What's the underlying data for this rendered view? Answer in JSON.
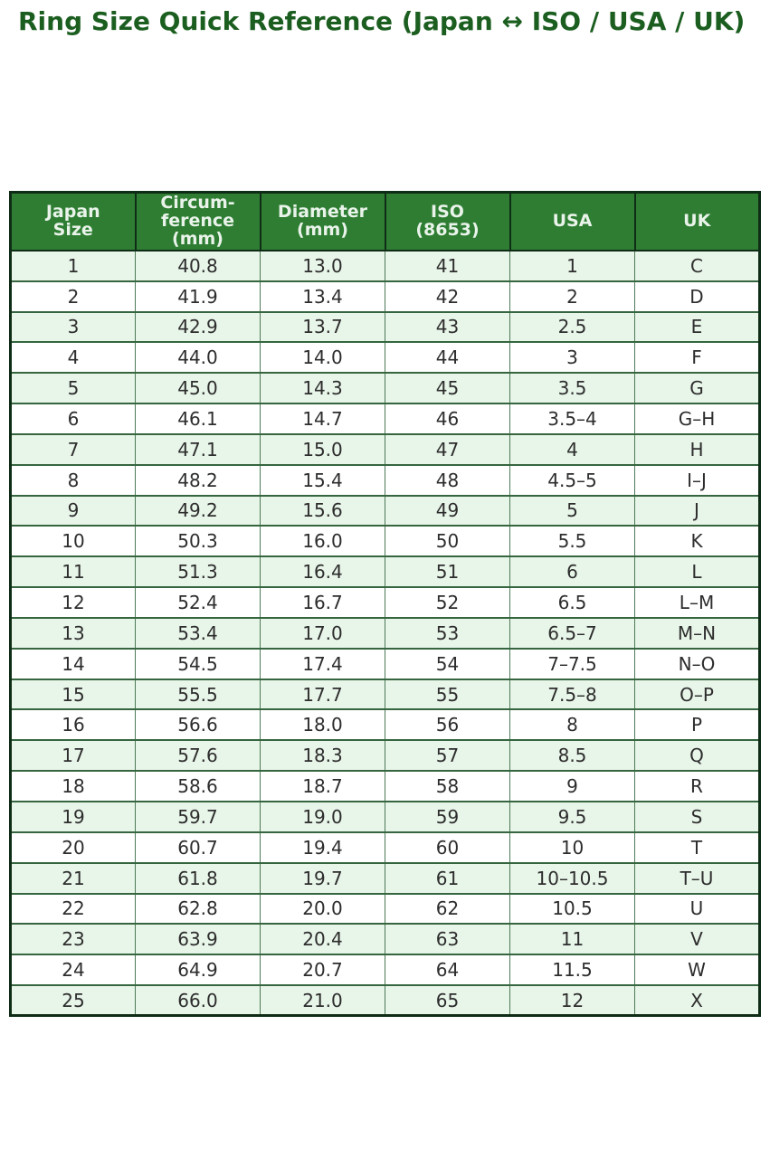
{
  "page": {
    "title": "Ring Size Quick Reference (Japan ↔ ISO / USA / UK)"
  },
  "colors": {
    "title-color": "#1b5e20",
    "header-bg": "#2e7d32",
    "header-text": "#e9f3ea",
    "row-alt-bg": "#e8f5e9",
    "row-bg": "#ffffff",
    "cell-text": "#2d2d2d",
    "outer-border": "#0f2d16",
    "row-border": "#35663f",
    "col-border": "#4d7a57"
  },
  "table": {
    "columns": [
      {
        "id": "japan-size",
        "label": "Japan\nSize"
      },
      {
        "id": "circumference-mm",
        "label": "Circum-\nference\n(mm)"
      },
      {
        "id": "diameter-mm",
        "label": "Diameter\n(mm)"
      },
      {
        "id": "iso-8653",
        "label": "ISO\n(8653)"
      },
      {
        "id": "usa",
        "label": "USA"
      },
      {
        "id": "uk",
        "label": "UK"
      }
    ],
    "rows": [
      [
        "1",
        "40.8",
        "13.0",
        "41",
        "1",
        "C"
      ],
      [
        "2",
        "41.9",
        "13.4",
        "42",
        "2",
        "D"
      ],
      [
        "3",
        "42.9",
        "13.7",
        "43",
        "2.5",
        "E"
      ],
      [
        "4",
        "44.0",
        "14.0",
        "44",
        "3",
        "F"
      ],
      [
        "5",
        "45.0",
        "14.3",
        "45",
        "3.5",
        "G"
      ],
      [
        "6",
        "46.1",
        "14.7",
        "46",
        "3.5–4",
        "G–H"
      ],
      [
        "7",
        "47.1",
        "15.0",
        "47",
        "4",
        "H"
      ],
      [
        "8",
        "48.2",
        "15.4",
        "48",
        "4.5–5",
        "I–J"
      ],
      [
        "9",
        "49.2",
        "15.6",
        "49",
        "5",
        "J"
      ],
      [
        "10",
        "50.3",
        "16.0",
        "50",
        "5.5",
        "K"
      ],
      [
        "11",
        "51.3",
        "16.4",
        "51",
        "6",
        "L"
      ],
      [
        "12",
        "52.4",
        "16.7",
        "52",
        "6.5",
        "L–M"
      ],
      [
        "13",
        "53.4",
        "17.0",
        "53",
        "6.5–7",
        "M–N"
      ],
      [
        "14",
        "54.5",
        "17.4",
        "54",
        "7–7.5",
        "N–O"
      ],
      [
        "15",
        "55.5",
        "17.7",
        "55",
        "7.5–8",
        "O–P"
      ],
      [
        "16",
        "56.6",
        "18.0",
        "56",
        "8",
        "P"
      ],
      [
        "17",
        "57.6",
        "18.3",
        "57",
        "8.5",
        "Q"
      ],
      [
        "18",
        "58.6",
        "18.7",
        "58",
        "9",
        "R"
      ],
      [
        "19",
        "59.7",
        "19.0",
        "59",
        "9.5",
        "S"
      ],
      [
        "20",
        "60.7",
        "19.4",
        "60",
        "10",
        "T"
      ],
      [
        "21",
        "61.8",
        "19.7",
        "61",
        "10–10.5",
        "T–U"
      ],
      [
        "22",
        "62.8",
        "20.0",
        "62",
        "10.5",
        "U"
      ],
      [
        "23",
        "63.9",
        "20.4",
        "63",
        "11",
        "V"
      ],
      [
        "24",
        "64.9",
        "20.7",
        "64",
        "11.5",
        "W"
      ],
      [
        "25",
        "66.0",
        "21.0",
        "65",
        "12",
        "X"
      ]
    ]
  }
}
